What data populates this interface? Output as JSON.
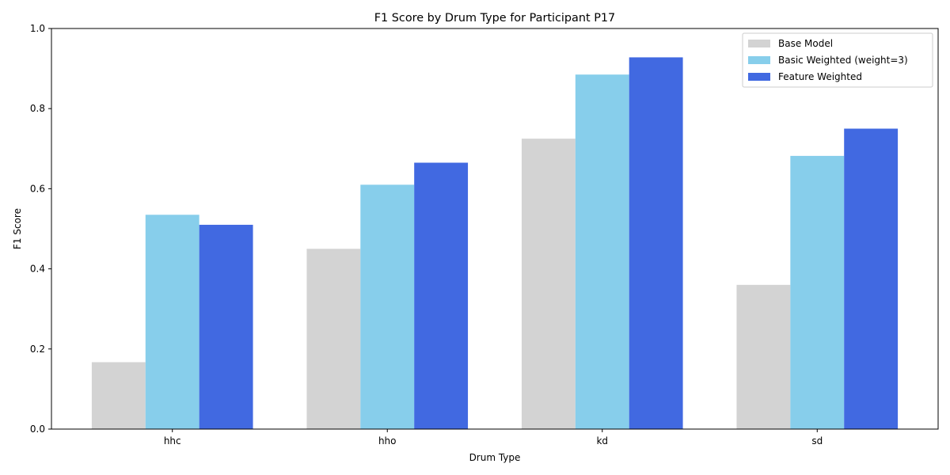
{
  "chart_data": {
    "type": "bar",
    "title": "F1 Score by Drum Type for Participant P17",
    "xlabel": "Drum Type",
    "ylabel": "F1 Score",
    "categories": [
      "hhc",
      "hho",
      "kd",
      "sd"
    ],
    "ylim": [
      0,
      1.0
    ],
    "yticks": [
      "0.0",
      "0.2",
      "0.4",
      "0.6",
      "0.8",
      "1.0"
    ],
    "grid": false,
    "legend_position": "top-right",
    "series": [
      {
        "name": "Base Model",
        "color": "#d3d3d3",
        "values": [
          0.167,
          0.45,
          0.725,
          0.36
        ]
      },
      {
        "name": "Basic Weighted (weight=3)",
        "color": "#87ceeb",
        "values": [
          0.535,
          0.61,
          0.885,
          0.682
        ]
      },
      {
        "name": "Feature Weighted",
        "color": "#4169e1",
        "values": [
          0.51,
          0.665,
          0.928,
          0.75
        ]
      }
    ]
  }
}
